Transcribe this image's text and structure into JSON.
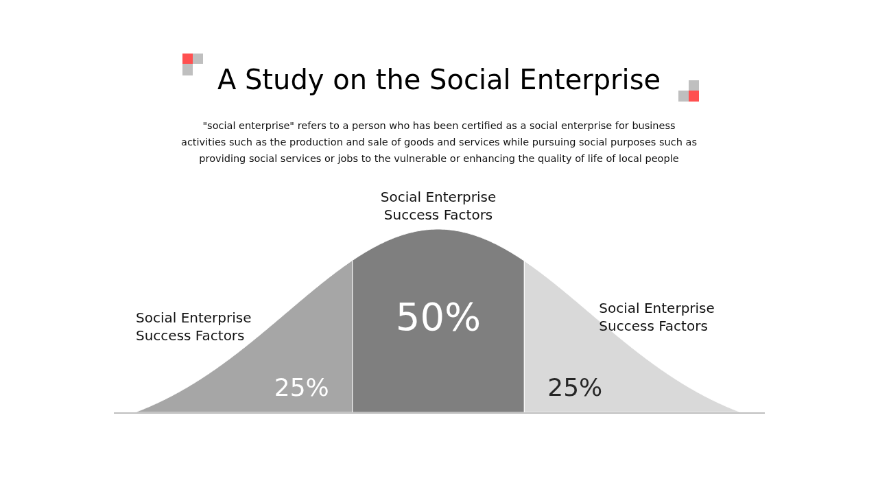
{
  "chart_data": {
    "type": "other",
    "title": "A Study on the Social Enterprise",
    "subtitle": "\"social enterprise\" refers to a person who has been certified as a social enterprise for business activities such as the production and sale of goods and services while pursuing social purposes such as providing social services or jobs to the vulnerable or enhancing the quality of life of local people",
    "categories": [
      "Social Enterprise Success Factors",
      "Social Enterprise Success Factors",
      "Social Enterprise Success Factors"
    ],
    "values": [
      25,
      50,
      25
    ],
    "value_labels": [
      "25%",
      "50%",
      "25%"
    ],
    "colors": [
      "#a6a6a6",
      "#7f7f7f",
      "#d9d9d9"
    ]
  }
}
